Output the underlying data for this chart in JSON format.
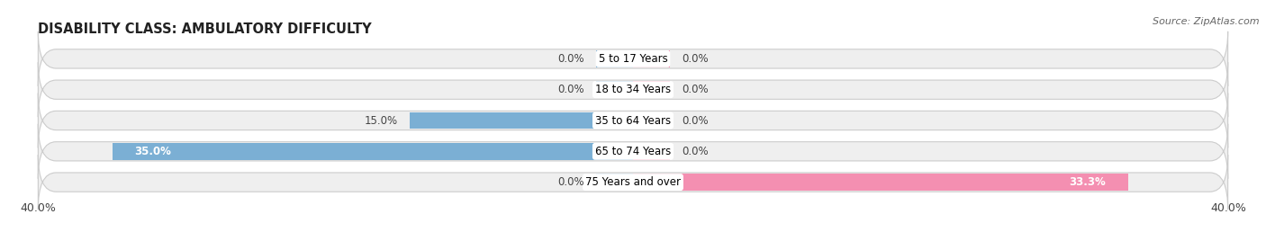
{
  "title": "DISABILITY CLASS: AMBULATORY DIFFICULTY",
  "source": "Source: ZipAtlas.com",
  "categories": [
    "5 to 17 Years",
    "18 to 34 Years",
    "35 to 64 Years",
    "65 to 74 Years",
    "75 Years and over"
  ],
  "male_values": [
    0.0,
    0.0,
    15.0,
    35.0,
    0.0
  ],
  "female_values": [
    0.0,
    0.0,
    0.0,
    0.0,
    33.3
  ],
  "x_max": 40.0,
  "male_color": "#7bafd4",
  "female_color": "#f48fb1",
  "bar_bg_color": "#efefef",
  "bar_border_color": "#cccccc",
  "stub_val": 2.5,
  "title_fontsize": 10.5,
  "label_fontsize": 8.5,
  "tick_fontsize": 9,
  "source_fontsize": 8,
  "bar_height": 0.62,
  "figsize": [
    14.06,
    2.68
  ],
  "dpi": 100
}
